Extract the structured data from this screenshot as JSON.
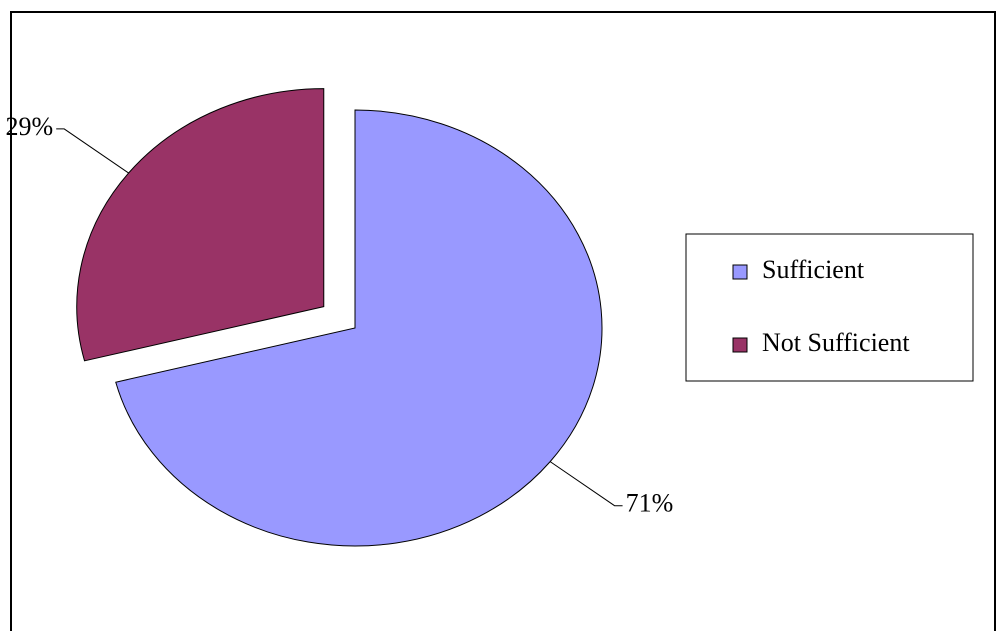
{
  "chart_data": {
    "type": "pie",
    "categories": [
      "Sufficient",
      "Not Sufficient"
    ],
    "values": [
      71,
      29
    ],
    "value_labels": [
      "71%",
      "29%"
    ],
    "colors": [
      "#9999ff",
      "#993366"
    ],
    "exploded": [
      false,
      true
    ],
    "legend": "right"
  }
}
